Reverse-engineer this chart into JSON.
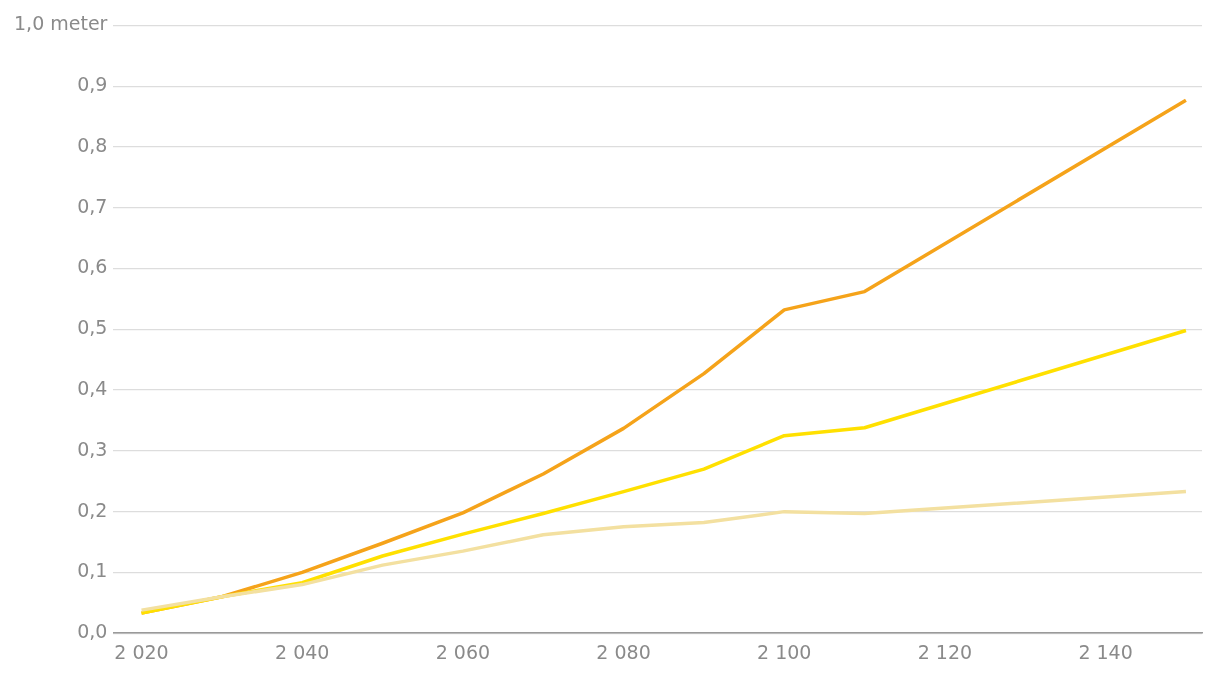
{
  "chart_data": {
    "type": "line",
    "x": [
      2020,
      2030,
      2040,
      2050,
      2060,
      2070,
      2080,
      2090,
      2100,
      2110,
      2150
    ],
    "series": [
      {
        "color": "#f3e0a0",
        "values": [
          0.038,
          0.06,
          0.08,
          0.112,
          0.135,
          0.162,
          0.175,
          0.182,
          0.2,
          0.197,
          0.233
        ]
      },
      {
        "color": "#ffe000",
        "values": [
          0.033,
          0.06,
          0.083,
          0.127,
          0.163,
          0.197,
          0.233,
          0.27,
          0.325,
          0.338,
          0.498
        ]
      },
      {
        "color": "#f5a31a",
        "values": [
          0.033,
          0.06,
          0.1,
          0.148,
          0.198,
          0.262,
          0.337,
          0.427,
          0.532,
          0.562,
          0.877
        ]
      }
    ],
    "xlim": [
      2016.5,
      2152
    ],
    "xticks": [
      {
        "value": 2020,
        "label": "2 020"
      },
      {
        "value": 2040,
        "label": "2 040"
      },
      {
        "value": 2060,
        "label": "2 060"
      },
      {
        "value": 2080,
        "label": "2 080"
      },
      {
        "value": 2100,
        "label": "2 100"
      },
      {
        "value": 2120,
        "label": "2 120"
      },
      {
        "value": 2140,
        "label": "2 140"
      }
    ],
    "ylim": [
      0,
      1
    ],
    "yticks": [
      {
        "value": 0,
        "label": "0,0"
      },
      {
        "value": 0.1,
        "label": "0,1"
      },
      {
        "value": 0.2,
        "label": "0,2"
      },
      {
        "value": 0.3,
        "label": "0,3"
      },
      {
        "value": 0.4,
        "label": "0,4"
      },
      {
        "value": 0.5,
        "label": "0,5"
      },
      {
        "value": 0.6,
        "label": "0,6"
      },
      {
        "value": 0.7,
        "label": "0,7"
      },
      {
        "value": 0.8,
        "label": "0,8"
      },
      {
        "value": 0.9,
        "label": "0,9"
      },
      {
        "value": 1,
        "label": "1,0 meter"
      }
    ],
    "grid": "y",
    "marker": "none",
    "line_style": "solid",
    "legend": false
  }
}
